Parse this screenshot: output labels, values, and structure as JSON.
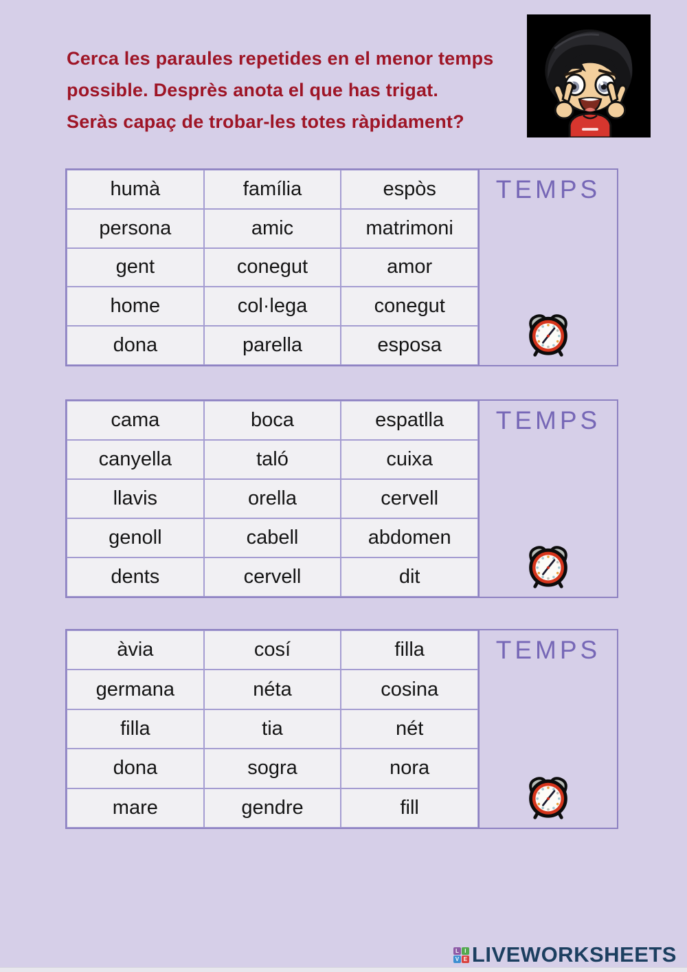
{
  "instructions": {
    "line1": "Cerca les paraules repetides en el menor temps",
    "line2": "possible. Desprès anota el que has trigat.",
    "line3": "Seràs capaç de trobar-les totes ràpidament?"
  },
  "tables": [
    {
      "temps_label": "TEMPS",
      "rows": [
        [
          "humà",
          "família",
          "espòs"
        ],
        [
          "persona",
          "amic",
          "matrimoni"
        ],
        [
          "gent",
          "conegut",
          "amor"
        ],
        [
          "home",
          "col·lega",
          "conegut"
        ],
        [
          "dona",
          "parella",
          "esposa"
        ]
      ]
    },
    {
      "temps_label": "TEMPS",
      "rows": [
        [
          "cama",
          "boca",
          "espatlla"
        ],
        [
          "canyella",
          "taló",
          "cuixa"
        ],
        [
          "llavis",
          "orella",
          "cervell"
        ],
        [
          "genoll",
          "cabell",
          "abdomen"
        ],
        [
          "dents",
          "cervell",
          "dit"
        ]
      ]
    },
    {
      "temps_label": "TEMPS",
      "rows": [
        [
          "àvia",
          "cosí",
          "filla"
        ],
        [
          "germana",
          "néta",
          "cosina"
        ],
        [
          "filla",
          "tia",
          "nét"
        ],
        [
          "dona",
          "sogra",
          "nora"
        ],
        [
          "mare",
          "gendre",
          "fill"
        ]
      ]
    }
  ],
  "icons": {
    "timer": "alarm-clock",
    "character": "chibi-girl-peace-signs"
  },
  "footer": {
    "brand": "LIVEWORKSHEETS",
    "logo_letters": {
      "tl": "L",
      "tr": "I",
      "bl": "V",
      "br": "E"
    }
  },
  "colors": {
    "page_background": "#d6cfe8",
    "cell_background": "#f1f0f3",
    "table_border": "#8d81c1",
    "temps_text": "#7667b6",
    "instruction_text": "#9e1526",
    "brand_text": "#1c3f60",
    "clock_body": "#d6361d"
  }
}
